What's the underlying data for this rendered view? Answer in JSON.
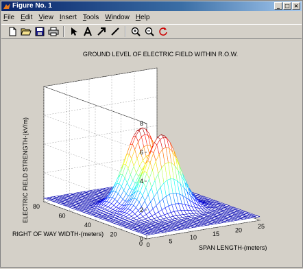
{
  "window": {
    "title": "Figure No. 1"
  },
  "menu": [
    {
      "first": "F",
      "rest": "ile"
    },
    {
      "first": "E",
      "rest": "dit"
    },
    {
      "first": "V",
      "rest": "iew"
    },
    {
      "first": "I",
      "rest": "nsert"
    },
    {
      "first": "T",
      "rest": "ools"
    },
    {
      "first": "W",
      "rest": "indow"
    },
    {
      "first": "H",
      "rest": "elp"
    }
  ],
  "toolbar_icons": [
    "new-file-icon",
    "open-folder-icon",
    "save-icon",
    "print-icon",
    "pointer-icon",
    "text-icon",
    "arrow-icon",
    "line-icon",
    "zoom-in-icon",
    "zoom-out-icon",
    "rotate-icon"
  ],
  "chart_data": {
    "type": "surface",
    "title": "GROUND LEVEL OF ELECTRIC FIELD WITHIN R.O.W.",
    "xlabel": "SPAN LENGTH-(meters)",
    "ylabel": "RIGHT OF WAY WIDTH-(meters)",
    "zlabel": "ELECTRIC FIELD STRENGTH-(kV/m)",
    "x_ticks": [
      0,
      5,
      10,
      15,
      20,
      25
    ],
    "y_ticks": [
      0,
      20,
      40,
      60,
      80
    ],
    "z_ticks": [
      0,
      2,
      4,
      6,
      8
    ],
    "xlim": [
      0,
      25
    ],
    "ylim": [
      0,
      80
    ],
    "zlim": [
      0,
      8
    ],
    "grid": true,
    "colormap": "jet",
    "peaks": [
      {
        "span": 12.5,
        "row_width": 32,
        "value": 5.5
      },
      {
        "span": 12.5,
        "row_width": 48,
        "value": 5.5
      }
    ]
  }
}
